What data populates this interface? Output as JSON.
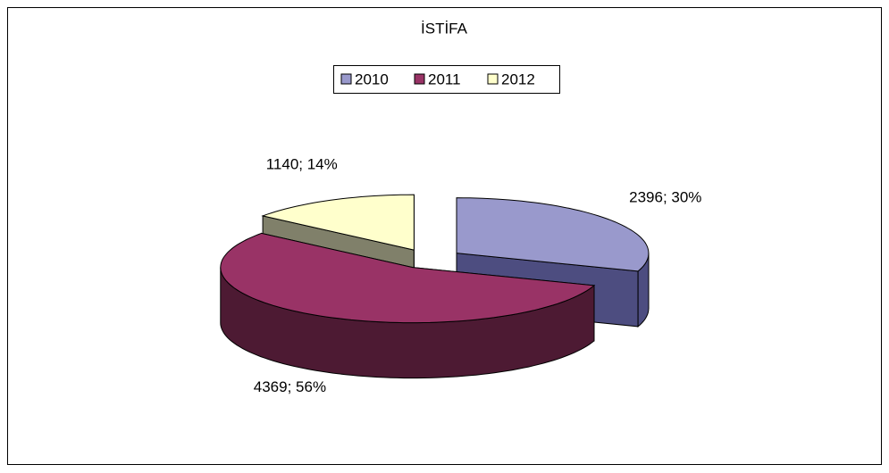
{
  "chart_data": {
    "type": "pie3d",
    "title": "İSTİFA",
    "categories": [
      "2010",
      "2011",
      "2012"
    ],
    "values": [
      2396,
      4369,
      1140
    ],
    "value_labels": [
      "2396; 30%",
      "4369; 56%",
      "1140; 14%"
    ],
    "colors": [
      "#9999cc",
      "#993366",
      "#ffffcc"
    ],
    "side_colors": [
      "#4d4d80",
      "#4d1a33",
      "#80806a"
    ],
    "legend": "top"
  }
}
